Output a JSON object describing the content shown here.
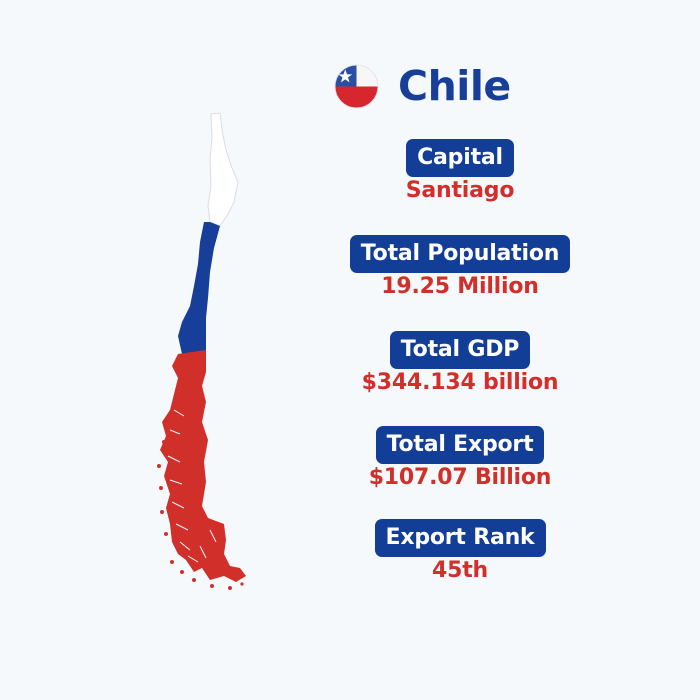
{
  "country": {
    "name": "Chile",
    "flag_icon": "chile-flag-icon",
    "map_icon": "chile-map-icon"
  },
  "colors": {
    "accent_blue": "#133e97",
    "accent_red": "#d02f2a",
    "background": "#f5f9fc"
  },
  "stats": [
    {
      "label": "Capital",
      "value": "Santiago"
    },
    {
      "label": "Total Population",
      "value": "19.25 Million"
    },
    {
      "label": "Total GDP",
      "value": "$344.134 billion"
    },
    {
      "label": "Total Export",
      "value": "$107.07 Billion"
    },
    {
      "label": "Export Rank",
      "value": "45th"
    }
  ]
}
